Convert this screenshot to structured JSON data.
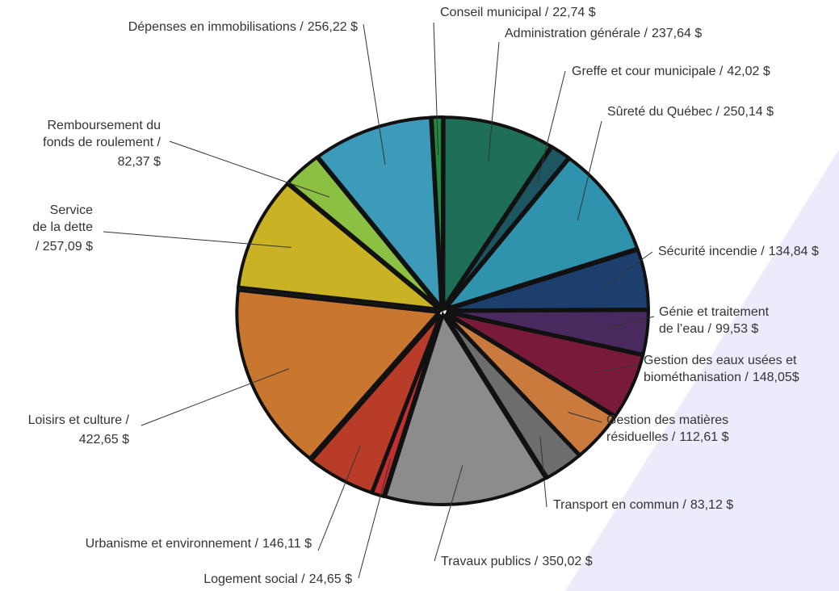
{
  "chart_data": {
    "type": "pie",
    "categories": [
      "Conseil municipal /",
      "Administration générale /",
      "Greffe et cour municipale /",
      "Sûreté du Québec /",
      "Sécurité incendie /",
      "Génie et traitement\nde l’eau /",
      "Gestion des eaux usées et\nbiométhanisation /",
      "Gestion des matières\nrésiduelles /",
      "Transport en commun /",
      "Travaux publics /",
      "Logement social /",
      "Urbanisme et environnement /",
      "Loisirs et culture /",
      "Service\nde la dette",
      "Remboursement du\nfonds de roulement /",
      "Dépenses en immobilisations /"
    ],
    "values": [
      22.74,
      237.64,
      42.02,
      250.14,
      134.84,
      99.53,
      148.05,
      112.61,
      83.12,
      350.02,
      24.65,
      146.11,
      422.65,
      257.09,
      82.37,
      256.22
    ],
    "value_labels": [
      "22,74 $",
      "237,64 $",
      "42,02 $",
      "250,14 $",
      "134,84 $",
      "99,53 $",
      "148,05$",
      "112,61 $",
      "83,12 $",
      "350,02 $",
      "24,65 $",
      "146,11 $",
      "422,65 $",
      "/ 257,09 $",
      "82,37 $",
      "256,22 $"
    ],
    "colors": [
      "#1f8a3e",
      "#1f6e58",
      "#1d5560",
      "#2f93ad",
      "#1d3f6e",
      "#4a2a5e",
      "#7a1a3a",
      "#c97a3c",
      "#6d6d6d",
      "#8c8c8c",
      "#c43030",
      "#b83c28",
      "#c9762f",
      "#c9b223",
      "#8cc042",
      "#3b9bb9"
    ]
  }
}
